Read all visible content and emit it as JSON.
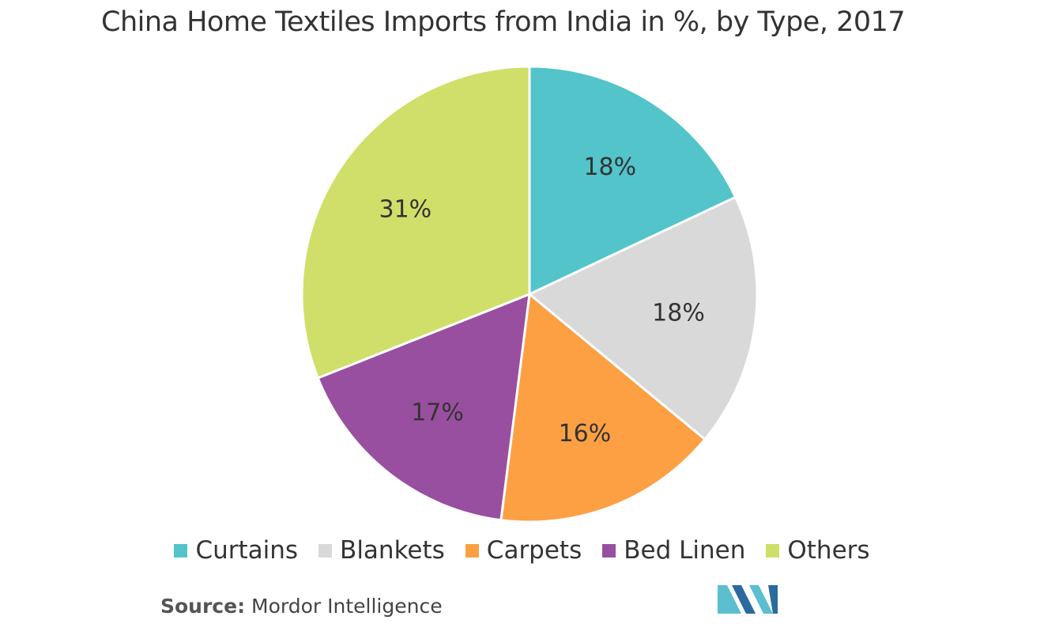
{
  "title": "China Home Textiles Imports from India in %, by Type, 2017",
  "source": {
    "label": "Source:",
    "text": "Mordor Intelligence"
  },
  "colors": {
    "Curtains": "#52c4ca",
    "Blankets": "#d9d9d9",
    "Carpets": "#fca043",
    "Bed Linen": "#994fa0",
    "Others": "#d0df69",
    "logo_light": "#5bbfd0",
    "logo_dark": "#2b6a9c"
  },
  "chart_data": {
    "type": "pie",
    "title": "China Home Textiles Imports from India in %, by Type, 2017",
    "legend_position": "bottom",
    "slices": [
      {
        "label": "Curtains",
        "value": 18,
        "display": "18%"
      },
      {
        "label": "Blankets",
        "value": 18,
        "display": "18%"
      },
      {
        "label": "Carpets",
        "value": 16,
        "display": "16%"
      },
      {
        "label": "Bed Linen",
        "value": 17,
        "display": "17%"
      },
      {
        "label": "Others",
        "value": 31,
        "display": "31%"
      }
    ]
  }
}
